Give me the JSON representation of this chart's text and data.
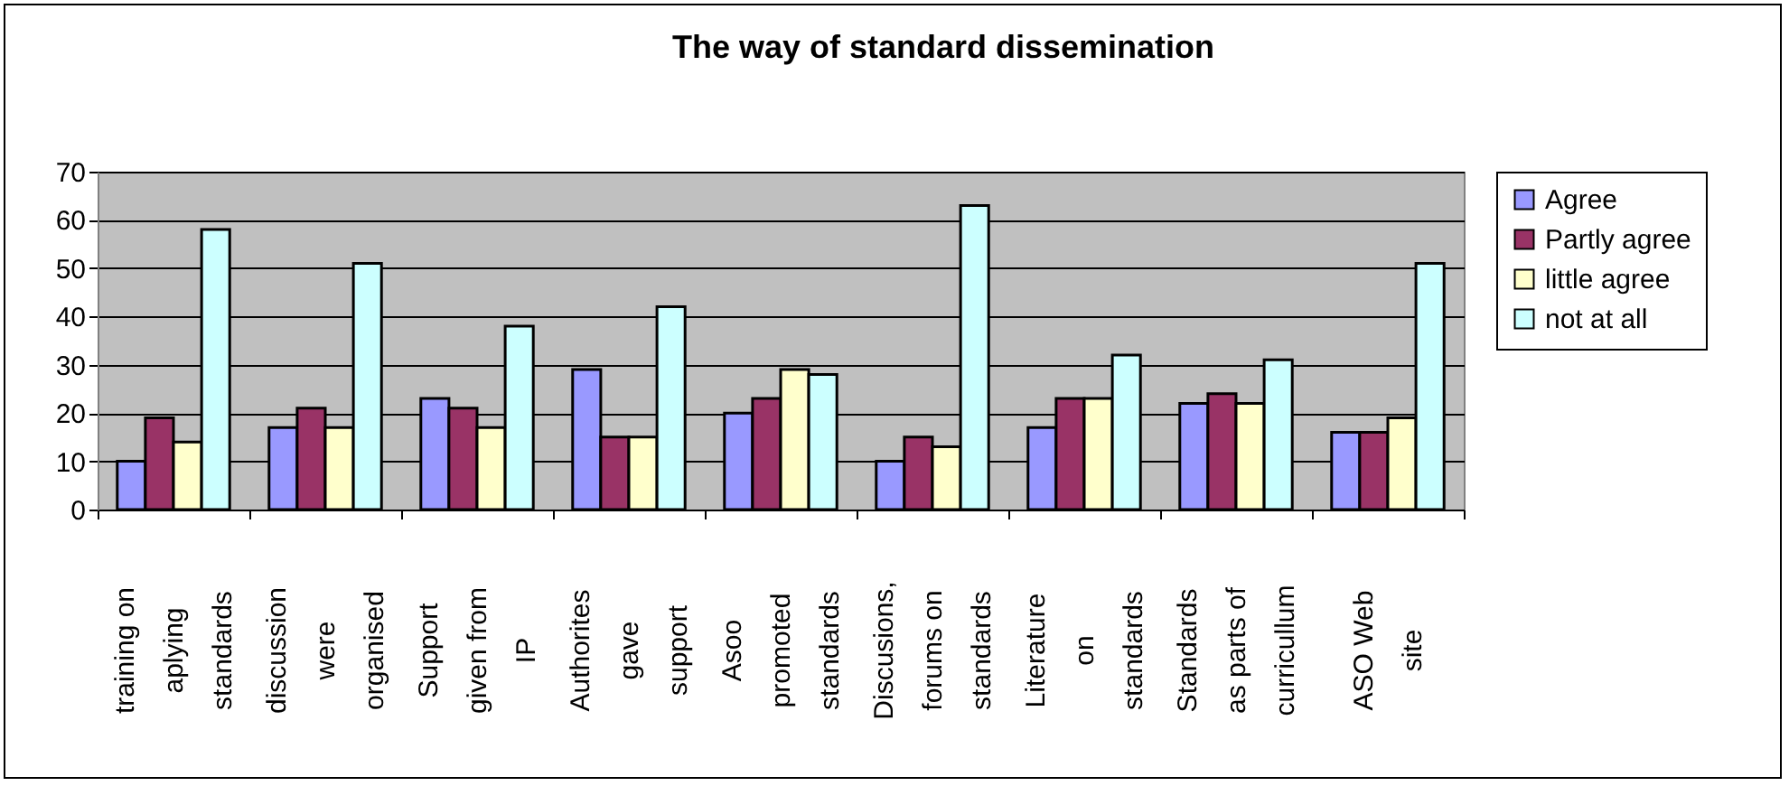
{
  "chart_data": {
    "type": "bar",
    "title": "The way of standard dissemination",
    "categories": [
      "training on aplying standards",
      "discussion were organised",
      "Support given from IP",
      "Authorites gave support",
      "Asoo promoted standards",
      "Discusions, forums on standards",
      "Literature on standards",
      "Standards as parts of curricullum",
      "ASO Web site"
    ],
    "series": [
      {
        "name": "Agree",
        "color": "#9999ff",
        "values": [
          10,
          17,
          23,
          29,
          20,
          10,
          17,
          22,
          16
        ]
      },
      {
        "name": "Partly agree",
        "color": "#993366",
        "values": [
          19,
          21,
          21,
          15,
          23,
          15,
          23,
          24,
          16
        ]
      },
      {
        "name": "little agree",
        "color": "#ffffcc",
        "values": [
          14,
          17,
          17,
          15,
          29,
          13,
          23,
          22,
          19
        ]
      },
      {
        "name": "not at all",
        "color": "#ccffff",
        "values": [
          58,
          51,
          38,
          42,
          28,
          63,
          32,
          31,
          51
        ]
      }
    ],
    "ylim": [
      0,
      70
    ],
    "yticks": [
      0,
      10,
      20,
      30,
      40,
      50,
      60,
      70
    ],
    "grid": "y",
    "legend": "right"
  }
}
